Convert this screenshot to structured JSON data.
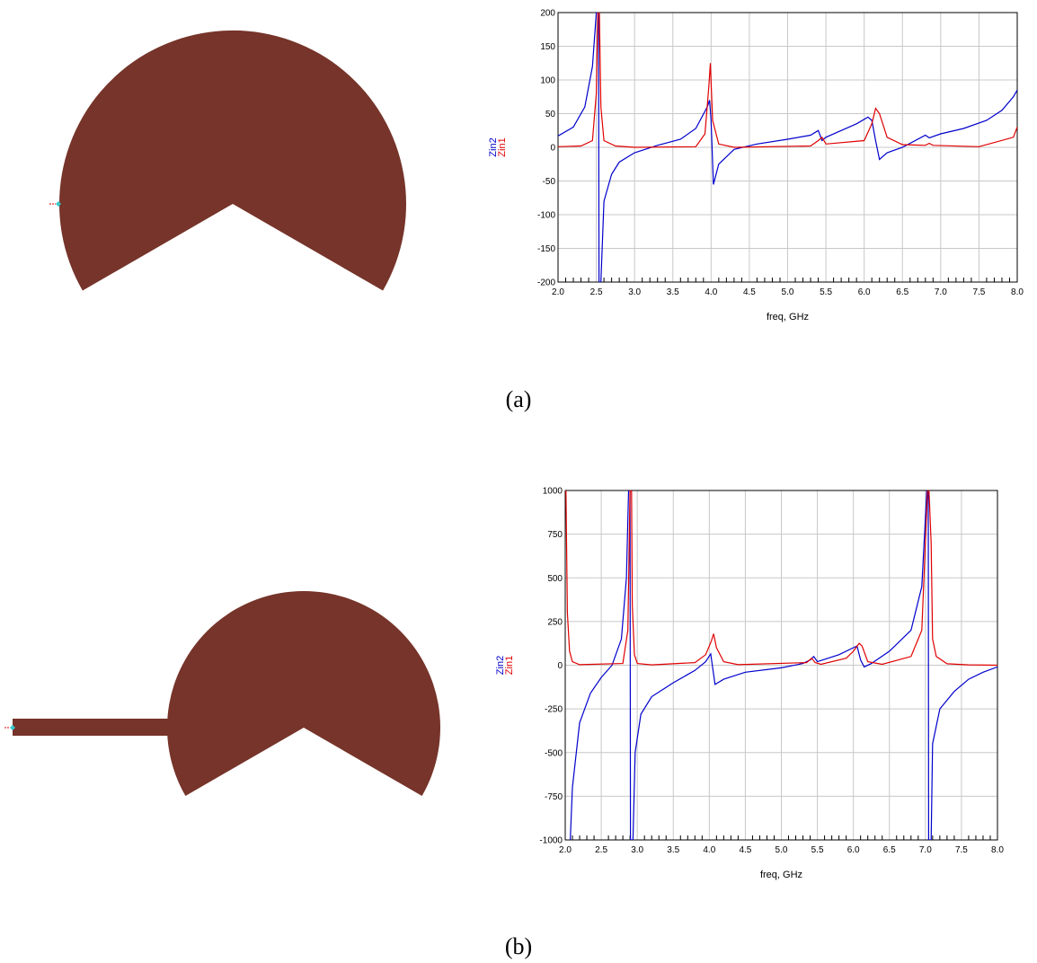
{
  "colors": {
    "patch": "#76342a",
    "port": "#36c9c9",
    "zin1": "#e00000",
    "zin2": "#0000cc",
    "grid": "#c8c8c8"
  },
  "captions": {
    "a": "(a)",
    "b": "(b)"
  },
  "chart_data": [
    {
      "type": "line",
      "title": "",
      "xlabel": "freq, GHz",
      "ylabel": "",
      "xlim": [
        2.0,
        8.0
      ],
      "ylim": [
        -200,
        200
      ],
      "xticks": [
        "2.0",
        "2.5",
        "3.0",
        "3.5",
        "4.0",
        "4.5",
        "5.0",
        "5.5",
        "6.0",
        "6.5",
        "7.0",
        "7.5",
        "8.0"
      ],
      "yticks": [
        "200",
        "150",
        "100",
        "50",
        "0",
        "-50",
        "-100",
        "-150",
        "-200"
      ],
      "legend": "left-vertical",
      "grid": true,
      "series": [
        {
          "name": "Zin2",
          "color": "#0000cc",
          "x": [
            2.0,
            2.2,
            2.35,
            2.45,
            2.5,
            2.53,
            2.535,
            2.56,
            2.6,
            2.7,
            2.8,
            3.0,
            3.3,
            3.6,
            3.8,
            3.95,
            3.98,
            4.0,
            4.03,
            4.1,
            4.3,
            4.6,
            5.0,
            5.3,
            5.4,
            5.45,
            5.5,
            5.7,
            5.9,
            6.05,
            6.1,
            6.15,
            6.2,
            6.3,
            6.5,
            6.8,
            6.85,
            7.0,
            7.3,
            7.6,
            7.8,
            7.95,
            8.0
          ],
          "y": [
            17,
            30,
            60,
            120,
            200,
            200,
            -200,
            -200,
            -80,
            -40,
            -22,
            -8,
            3,
            12,
            28,
            60,
            70,
            40,
            -55,
            -25,
            -3,
            5,
            12,
            18,
            25,
            10,
            15,
            25,
            35,
            45,
            40,
            10,
            -18,
            -8,
            0,
            18,
            14,
            20,
            28,
            40,
            55,
            75,
            85
          ]
        },
        {
          "name": "Zin1",
          "color": "#e00000",
          "x": [
            2.0,
            2.3,
            2.45,
            2.5,
            2.52,
            2.54,
            2.56,
            2.6,
            2.75,
            3.0,
            3.8,
            3.92,
            3.97,
            3.99,
            4.02,
            4.1,
            4.3,
            5.3,
            5.4,
            5.45,
            5.5,
            6.0,
            6.1,
            6.15,
            6.2,
            6.3,
            6.5,
            6.8,
            6.85,
            6.9,
            7.5,
            7.95,
            8.0
          ],
          "y": [
            1,
            2,
            10,
            80,
            200,
            200,
            60,
            10,
            2,
            0,
            1,
            20,
            90,
            125,
            40,
            5,
            0,
            2,
            10,
            15,
            5,
            10,
            35,
            58,
            50,
            15,
            4,
            3,
            6,
            3,
            1,
            15,
            30
          ]
        }
      ]
    },
    {
      "type": "line",
      "title": "",
      "xlabel": "freq, GHz",
      "ylabel": "",
      "xlim": [
        2.0,
        8.0
      ],
      "ylim": [
        -1000,
        1000
      ],
      "xticks": [
        "2.0",
        "2.5",
        "3.0",
        "3.5",
        "4.0",
        "4.5",
        "5.0",
        "5.5",
        "6.0",
        "6.5",
        "7.0",
        "7.5",
        "8.0"
      ],
      "yticks": [
        "1000",
        "750",
        "500",
        "250",
        "0",
        "-250",
        "-500",
        "-750",
        "-1000"
      ],
      "legend": "left-vertical",
      "grid": true,
      "series": [
        {
          "name": "Zin2",
          "color": "#0000cc",
          "x": [
            2.07,
            2.1,
            2.2,
            2.35,
            2.5,
            2.65,
            2.78,
            2.85,
            2.88,
            2.9,
            2.905,
            2.94,
            2.97,
            3.05,
            3.2,
            3.5,
            3.8,
            3.95,
            4.02,
            4.08,
            4.2,
            4.5,
            5.0,
            5.3,
            5.4,
            5.45,
            5.5,
            5.8,
            6.0,
            6.05,
            6.1,
            6.15,
            6.25,
            6.5,
            6.8,
            6.95,
            7.02,
            7.04,
            7.045,
            7.08,
            7.1,
            7.2,
            7.4,
            7.6,
            7.8,
            8.0
          ],
          "y": [
            -1000,
            -700,
            -330,
            -160,
            -70,
            0,
            150,
            500,
            1000,
            1000,
            -1000,
            -1000,
            -500,
            -280,
            -180,
            -100,
            -30,
            20,
            65,
            -110,
            -80,
            -40,
            -15,
            10,
            30,
            50,
            20,
            60,
            100,
            110,
            30,
            -10,
            10,
            80,
            200,
            450,
            1000,
            1000,
            -1000,
            -1000,
            -450,
            -250,
            -150,
            -80,
            -40,
            -10
          ]
        },
        {
          "name": "Zin1",
          "color": "#e00000",
          "x": [
            2.0,
            2.01,
            2.03,
            2.06,
            2.1,
            2.2,
            2.8,
            2.87,
            2.9,
            2.92,
            2.93,
            2.96,
            3.0,
            3.2,
            3.8,
            3.95,
            4.03,
            4.06,
            4.1,
            4.2,
            4.4,
            5.35,
            5.42,
            5.47,
            5.55,
            5.9,
            6.0,
            6.08,
            6.12,
            6.2,
            6.4,
            6.8,
            6.95,
            7.03,
            7.05,
            7.08,
            7.1,
            7.15,
            7.3,
            7.6,
            8.0
          ],
          "y": [
            1000,
            1000,
            300,
            80,
            20,
            3,
            10,
            200,
            1000,
            1000,
            350,
            60,
            10,
            2,
            15,
            60,
            140,
            180,
            100,
            20,
            3,
            15,
            40,
            15,
            5,
            40,
            80,
            125,
            110,
            20,
            5,
            50,
            200,
            1000,
            1000,
            700,
            150,
            50,
            8,
            2,
            0
          ]
        }
      ]
    }
  ]
}
